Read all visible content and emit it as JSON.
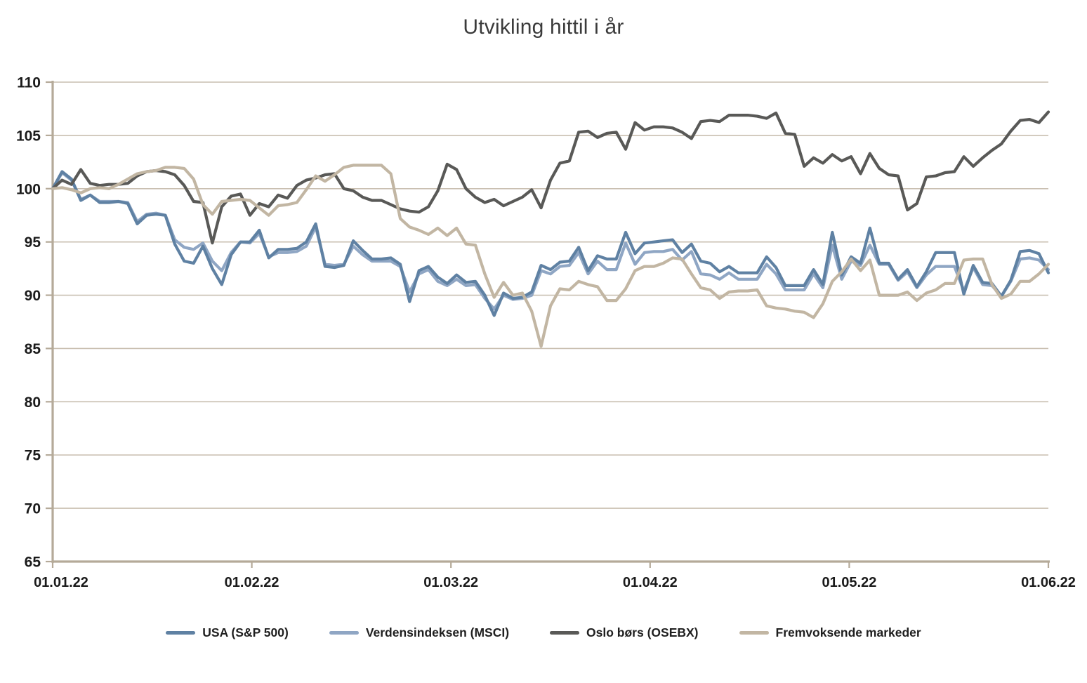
{
  "chart_data": {
    "type": "line",
    "title": "Utvikling hittil i år",
    "x_tick_labels": [
      "01.01.22",
      "01.02.22",
      "01.03.22",
      "01.04.22",
      "01.05.22",
      "01.06.22"
    ],
    "y_axis": {
      "min": 65,
      "max": 110,
      "step": 5
    },
    "grid": true,
    "legend_position": "bottom",
    "axis_color": "#b5aa99",
    "grid_color": "#c9bfb1",
    "series": [
      {
        "name": "USA (S&P 500)",
        "color": "#5f81a3",
        "values": [
          100,
          101.6,
          100.9,
          98.9,
          99.4,
          98.7,
          98.7,
          98.8,
          98.6,
          96.7,
          97.5,
          97.6,
          97.5,
          94.8,
          93.2,
          93.0,
          94.6,
          92.5,
          91.0,
          93.8,
          95.0,
          95.0,
          96.1,
          93.5,
          94.3,
          94.3,
          94.4,
          95.0,
          96.7,
          92.7,
          92.6,
          92.8,
          95.1,
          94.2,
          93.4,
          93.4,
          93.5,
          92.9,
          89.4,
          92.3,
          92.7,
          91.7,
          91.1,
          91.9,
          91.2,
          91.3,
          90.0,
          88.1,
          90.2,
          89.7,
          89.8,
          90.3,
          92.8,
          92.4,
          93.1,
          93.2,
          94.5,
          92.3,
          93.7,
          93.4,
          93.4,
          95.9,
          93.9,
          94.9,
          95.0,
          95.1,
          95.2,
          94.0,
          94.8,
          93.2,
          93.0,
          92.2,
          92.7,
          92.1,
          92.1,
          92.1,
          93.6,
          92.6,
          90.9,
          90.9,
          90.9,
          92.4,
          91.0,
          95.9,
          91.9,
          93.6,
          93.0,
          96.3,
          93.0,
          93.0,
          91.5,
          92.4,
          90.8,
          92.2,
          94.0,
          94.0,
          94.0,
          90.1,
          92.8,
          91.2,
          91.1,
          89.9,
          91.4,
          94.1,
          94.2,
          93.9,
          92.1
        ]
      },
      {
        "name": "Verdensindeksen (MSCI)",
        "color": "#8fa6c4",
        "values": [
          100,
          101.5,
          100.8,
          99.0,
          99.4,
          98.8,
          98.8,
          98.8,
          98.7,
          96.9,
          97.6,
          97.7,
          97.5,
          95.2,
          94.5,
          94.3,
          94.9,
          93.2,
          92.3,
          94.0,
          95.0,
          94.9,
          95.8,
          93.6,
          94.0,
          94.0,
          94.1,
          94.6,
          96.4,
          92.9,
          92.8,
          92.9,
          94.6,
          93.8,
          93.2,
          93.2,
          93.2,
          92.7,
          90.3,
          92.0,
          92.4,
          91.3,
          90.9,
          91.5,
          90.9,
          91.0,
          89.7,
          88.7,
          90.0,
          89.6,
          89.7,
          90.0,
          92.3,
          92.0,
          92.7,
          92.8,
          94.0,
          92.0,
          93.2,
          92.4,
          92.4,
          94.9,
          92.9,
          94.0,
          94.1,
          94.1,
          94.3,
          93.3,
          94.1,
          92.0,
          91.9,
          91.5,
          92.1,
          91.5,
          91.5,
          91.5,
          92.9,
          92.0,
          90.5,
          90.5,
          90.5,
          92.0,
          90.7,
          94.7,
          91.5,
          93.2,
          92.8,
          94.7,
          92.9,
          92.9,
          91.4,
          92.2,
          90.7,
          91.9,
          92.7,
          92.7,
          92.7,
          90.4,
          92.6,
          91.0,
          90.9,
          89.9,
          91.3,
          93.4,
          93.5,
          93.3,
          92.4
        ]
      },
      {
        "name": "Oslo børs (OSEBX)",
        "color": "#595957",
        "values": [
          100,
          100.8,
          100.4,
          101.8,
          100.5,
          100.3,
          100.4,
          100.4,
          100.5,
          101.2,
          101.6,
          101.7,
          101.6,
          101.3,
          100.3,
          98.8,
          98.7,
          94.9,
          98.3,
          99.3,
          99.5,
          97.5,
          98.6,
          98.3,
          99.4,
          99.1,
          100.3,
          100.8,
          101.0,
          101.3,
          101.4,
          100.0,
          99.8,
          99.2,
          98.9,
          98.9,
          98.5,
          98.1,
          97.9,
          97.8,
          98.3,
          99.8,
          102.3,
          101.8,
          100.0,
          99.2,
          98.7,
          99.0,
          98.4,
          98.8,
          99.2,
          99.9,
          98.2,
          100.8,
          102.4,
          102.6,
          105.3,
          105.4,
          104.8,
          105.2,
          105.3,
          103.7,
          106.2,
          105.5,
          105.8,
          105.8,
          105.7,
          105.3,
          104.7,
          106.3,
          106.4,
          106.3,
          106.9,
          106.9,
          106.9,
          106.8,
          106.6,
          107.1,
          105.2,
          105.1,
          102.1,
          102.9,
          102.4,
          103.2,
          102.6,
          103.0,
          101.4,
          103.3,
          101.9,
          101.3,
          101.2,
          98.0,
          98.6,
          101.1,
          101.2,
          101.5,
          101.6,
          103.0,
          102.1,
          102.9,
          103.6,
          104.2,
          105.4,
          106.4,
          106.5,
          106.2,
          107.2
        ]
      },
      {
        "name": "Fremvoksende markeder",
        "color": "#c2b6a3",
        "values": [
          100,
          100.1,
          99.9,
          99.6,
          100.0,
          100.1,
          100.0,
          100.4,
          100.9,
          101.4,
          101.6,
          101.7,
          102.0,
          102.0,
          101.9,
          100.9,
          98.5,
          97.6,
          98.8,
          98.9,
          99.0,
          98.9,
          98.2,
          97.5,
          98.4,
          98.5,
          98.7,
          99.9,
          101.2,
          100.7,
          101.3,
          102.0,
          102.2,
          102.2,
          102.2,
          102.2,
          101.4,
          97.2,
          96.4,
          96.1,
          95.7,
          96.3,
          95.6,
          96.3,
          94.8,
          94.7,
          92.0,
          89.8,
          91.2,
          90.0,
          90.2,
          88.5,
          85.2,
          89.0,
          90.6,
          90.5,
          91.3,
          91.0,
          90.8,
          89.5,
          89.5,
          90.6,
          92.3,
          92.7,
          92.7,
          93.0,
          93.5,
          93.4,
          92.0,
          90.7,
          90.5,
          89.7,
          90.3,
          90.4,
          90.4,
          90.5,
          89.0,
          88.8,
          88.7,
          88.5,
          88.4,
          87.9,
          89.2,
          91.3,
          92.2,
          93.4,
          92.3,
          93.3,
          90.0,
          90.0,
          90.0,
          90.3,
          89.5,
          90.2,
          90.5,
          91.1,
          91.1,
          93.3,
          93.4,
          93.4,
          91.0,
          89.7,
          90.1,
          91.3,
          91.3,
          92.0,
          92.9
        ]
      }
    ],
    "draw_order": [
      1,
      0,
      2,
      3
    ]
  }
}
